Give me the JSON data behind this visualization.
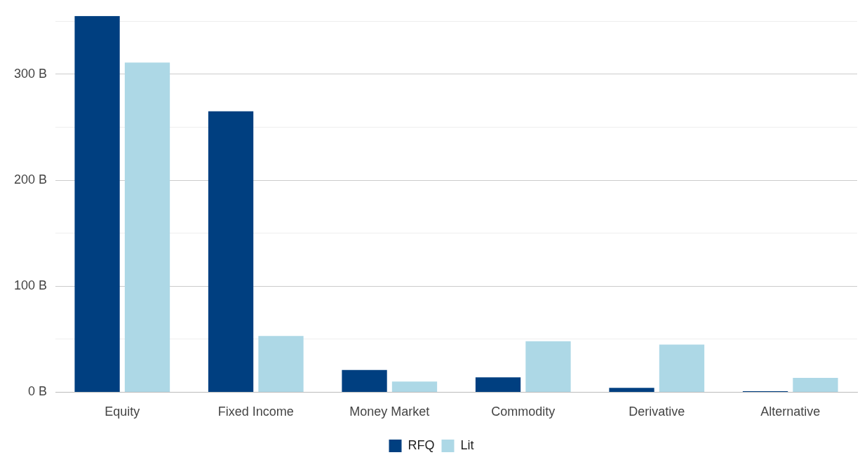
{
  "chart_data": {
    "type": "bar",
    "categories": [
      "Equity",
      "Fixed Income",
      "Money Market",
      "Commodity",
      "Derivative",
      "Alternative"
    ],
    "series": [
      {
        "name": "RFQ",
        "color": "#003f80",
        "values": [
          355,
          265,
          21,
          14,
          4,
          1
        ]
      },
      {
        "name": "Lit",
        "color": "#add8e6",
        "values": [
          311,
          53,
          10,
          48,
          45,
          13.5
        ]
      }
    ],
    "ylim": [
      0,
      355
    ],
    "yticks": [
      {
        "value": 0,
        "label": "0 B"
      },
      {
        "value": 50,
        "label": null
      },
      {
        "value": 100,
        "label": "100 B"
      },
      {
        "value": 150,
        "label": null
      },
      {
        "value": 200,
        "label": "200 B"
      },
      {
        "value": 250,
        "label": null
      },
      {
        "value": 300,
        "label": "300 B"
      },
      {
        "value": 350,
        "label": null
      }
    ],
    "grid": "y",
    "legend": "bottom"
  }
}
